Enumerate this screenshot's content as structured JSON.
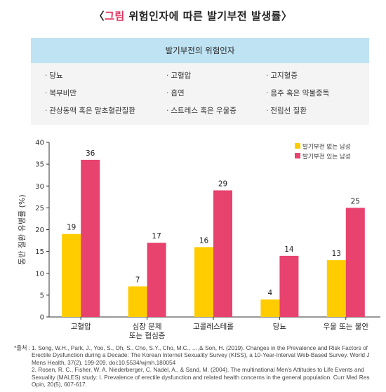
{
  "title": {
    "prefix": "〈",
    "accent": "그림",
    "text": " 위험인자에 따른 발기부전 발생률",
    "suffix": "〉",
    "accent_color": "#e0325f"
  },
  "risk_box": {
    "header": "발기부전의 위험인자",
    "items": [
      [
        "당뇨",
        "복부비만",
        "관상동맥 혹은 말초혈관질환"
      ],
      [
        "고혈압",
        "흡연",
        "스트레스 혹은 우울증"
      ],
      [
        "고지혈증",
        "음주 혹은 약물중독",
        "전립선 질환"
      ]
    ]
  },
  "chart_data": {
    "type": "bar",
    "categories": [
      "고혈압",
      "심장 문제\n또는 협심증",
      "고콜레스테롤",
      "당뇨",
      "우울 또는 불안"
    ],
    "series": [
      {
        "name": "발기부전 없는 남성",
        "values": [
          19,
          7,
          16,
          4,
          13
        ],
        "color": "#ffcc00"
      },
      {
        "name": "발기부전 있는 남성",
        "values": [
          36,
          17,
          29,
          14,
          25
        ],
        "color": "#e8426e"
      }
    ],
    "ylabel": "동반 질환 유병률 (%)",
    "ylim": [
      0,
      40
    ],
    "yticks": [
      0,
      5,
      10,
      15,
      20,
      25,
      30,
      35,
      40
    ],
    "legend": "top-right",
    "grid": false
  },
  "source": {
    "lead": "*출처 :",
    "refs": [
      "1. Song, W.H., Park, J., Yoo, S., Oh, S., Cho, S.Y., Cho, M.C., …,& Son, H. (2019). Changes in the Prevalence and Risk Factors of Erectile Dysfunction during a Decade: The Korean Internet Sexuality Survey (KISS), a 10-Year-Interval Web-Based Survey. World J Mens Health, 37(2), 199-209, doi:10.5534/wjmh.180054",
      "2. Rosen, R. C., Fisher, W. A. Niederberger, C. Nadel, A., & Sand, M. (2004). The multinational Men's Attitudes to Life Events and Sexuality (MALES) study: I. Prevalence of erectile dysfunction and related health concerns in the general population. Curr Med Res Opin, 20(5), 607-617."
    ]
  }
}
